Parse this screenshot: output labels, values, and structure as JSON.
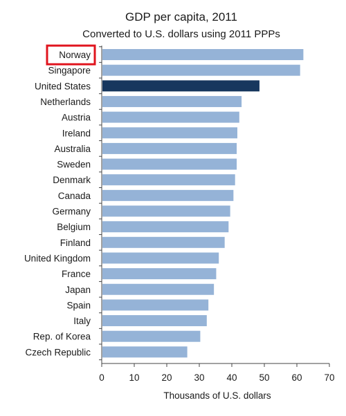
{
  "chart_data": {
    "type": "bar",
    "orientation": "horizontal",
    "title": "GDP per capita, 2011",
    "subtitle": "Converted to U.S. dollars using 2011 PPPs",
    "xlabel": "Thousands of U.S. dollars",
    "ylabel": "",
    "xlim": [
      0,
      70
    ],
    "xticks": [
      0,
      10,
      20,
      30,
      40,
      50,
      60,
      70
    ],
    "grid": false,
    "categories": [
      "Norway",
      "Singapore",
      "United States",
      "Netherlands",
      "Austria",
      "Ireland",
      "Australia",
      "Sweden",
      "Denmark",
      "Canada",
      "Germany",
      "Belgium",
      "Finland",
      "United Kingdom",
      "France",
      "Japan",
      "Spain",
      "Italy",
      "Rep. of Korea",
      "Czech Republic"
    ],
    "values": [
      62.0,
      61.0,
      48.5,
      43.0,
      42.3,
      41.7,
      41.5,
      41.5,
      41.0,
      40.5,
      39.5,
      39.0,
      37.8,
      36.0,
      35.2,
      34.5,
      32.8,
      32.3,
      30.3,
      26.3
    ],
    "highlighted_category": "Norway",
    "colors": {
      "bar": "#95b3d7",
      "highlight_bar": "#17375e",
      "highlight_box": "#e0141e",
      "axis": "#444444"
    }
  }
}
